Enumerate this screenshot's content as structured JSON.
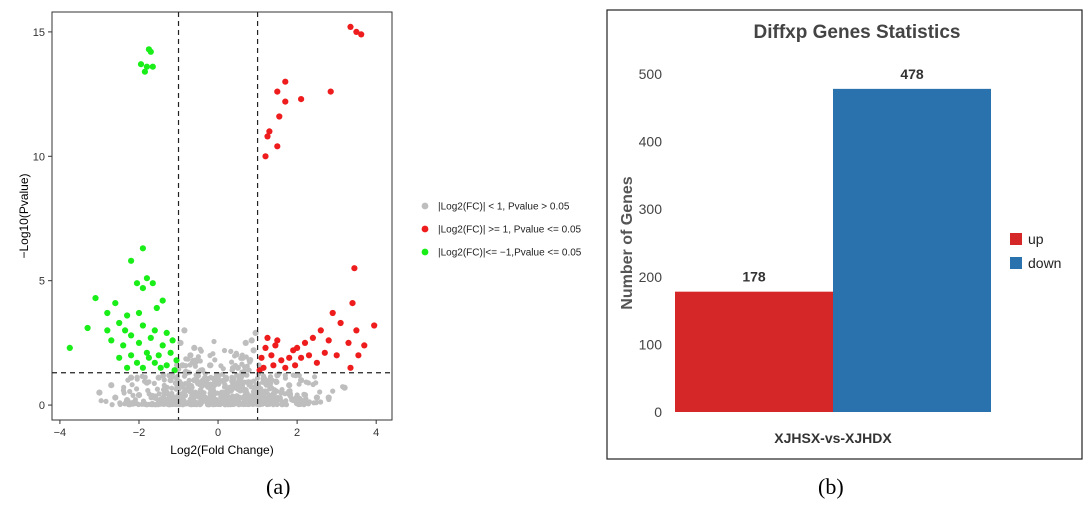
{
  "captions": {
    "a": "(a)",
    "b": "(b)"
  },
  "chart_data": [
    {
      "type": "scatter",
      "title": "",
      "xlabel": "Log2(Fold Change)",
      "ylabel": "−Log10(Pvalue)",
      "xlim": [
        -4.2,
        4.4
      ],
      "ylim": [
        -0.6,
        15.8
      ],
      "xticks": [
        -4,
        -2,
        0,
        2,
        4
      ],
      "yticks": [
        0,
        5,
        10,
        15
      ],
      "thresholds": {
        "x": [
          -1,
          1
        ],
        "y": 1.3
      },
      "grid": false,
      "legend_position": "right",
      "series": [
        {
          "name": "|Log2(FC)| < 1, Pvalue > 0.05",
          "color": "#bebebe",
          "points": [
            [
              -1.6,
              0.3
            ],
            [
              -1.3,
              0.5
            ],
            [
              -1.0,
              0.2
            ],
            [
              -0.8,
              0.6
            ],
            [
              -0.5,
              0.4
            ],
            [
              -0.2,
              0.3
            ],
            [
              0.1,
              0.5
            ],
            [
              0.4,
              0.2
            ],
            [
              0.7,
              0.6
            ],
            [
              1.0,
              0.4
            ],
            [
              1.3,
              0.3
            ],
            [
              1.6,
              0.5
            ],
            [
              1.9,
              0.2
            ],
            [
              2.2,
              0.4
            ],
            [
              2.5,
              0.3
            ],
            [
              -2.0,
              0.4
            ],
            [
              -2.3,
              0.2
            ],
            [
              -2.6,
              0.3
            ],
            [
              -3.0,
              0.5
            ],
            [
              2.8,
              0.3
            ],
            [
              -0.6,
              1.0
            ],
            [
              -0.4,
              1.4
            ],
            [
              -0.3,
              0.9
            ],
            [
              0.2,
              1.1
            ],
            [
              0.5,
              1.5
            ],
            [
              0.6,
              1.2
            ],
            [
              -0.9,
              1.6
            ],
            [
              -0.7,
              2.0
            ],
            [
              0.8,
              1.8
            ],
            [
              0.9,
              2.2
            ],
            [
              -0.95,
              2.5
            ],
            [
              -0.85,
              3.0
            ],
            [
              0.85,
              2.6
            ],
            [
              0.95,
              2.9
            ],
            [
              -1.2,
              1.0
            ],
            [
              -1.5,
              1.1
            ],
            [
              1.2,
              1.0
            ],
            [
              1.5,
              1.2
            ],
            [
              -0.1,
              0.8
            ],
            [
              0.0,
              1.2
            ],
            [
              -1.8,
              0.9
            ],
            [
              1.8,
              0.8
            ],
            [
              2.1,
              1.0
            ],
            [
              -2.2,
              1.1
            ],
            [
              0.3,
              0.7
            ],
            [
              -0.2,
              1.6
            ],
            [
              0.7,
              2.5
            ],
            [
              -0.6,
              2.3
            ],
            [
              3.2,
              0.7
            ],
            [
              -2.7,
              0.8
            ]
          ]
        },
        {
          "name": "|Log2(FC)| >= 1, Pvalue <= 0.05",
          "color": "#ee1c1c",
          "points": [
            [
              3.35,
              15.2
            ],
            [
              3.5,
              15.0
            ],
            [
              3.62,
              14.9
            ],
            [
              1.7,
              13.0
            ],
            [
              1.5,
              12.6
            ],
            [
              1.7,
              12.2
            ],
            [
              2.1,
              12.3
            ],
            [
              2.85,
              12.6
            ],
            [
              1.55,
              11.6
            ],
            [
              1.3,
              11.0
            ],
            [
              1.25,
              10.8
            ],
            [
              1.5,
              10.4
            ],
            [
              1.2,
              10.0
            ],
            [
              3.45,
              5.5
            ],
            [
              3.4,
              4.1
            ],
            [
              2.9,
              3.7
            ],
            [
              3.1,
              3.3
            ],
            [
              3.95,
              3.2
            ],
            [
              2.6,
              3.0
            ],
            [
              2.4,
              2.7
            ],
            [
              3.5,
              3.0
            ],
            [
              2.2,
              2.5
            ],
            [
              3.3,
              2.5
            ],
            [
              3.7,
              2.4
            ],
            [
              2.0,
              2.3
            ],
            [
              2.7,
              2.1
            ],
            [
              3.0,
              2.0
            ],
            [
              3.55,
              2.0
            ],
            [
              1.5,
              2.6
            ],
            [
              1.2,
              2.3
            ],
            [
              1.1,
              1.9
            ],
            [
              1.35,
              2.0
            ],
            [
              1.6,
              1.8
            ],
            [
              1.8,
              1.9
            ],
            [
              1.9,
              2.2
            ],
            [
              1.4,
              1.6
            ],
            [
              1.15,
              1.5
            ],
            [
              2.5,
              1.7
            ],
            [
              2.1,
              1.9
            ],
            [
              1.7,
              1.5
            ],
            [
              1.25,
              2.7
            ],
            [
              1.05,
              1.4
            ],
            [
              1.95,
              1.6
            ],
            [
              2.3,
              2.0
            ],
            [
              1.45,
              2.4
            ],
            [
              3.35,
              1.5
            ],
            [
              2.8,
              2.6
            ]
          ]
        },
        {
          "name": "|Log2(FC)|<= −1,Pvalue <= 0.05",
          "color": "#19ee19",
          "points": [
            [
              -1.75,
              14.3
            ],
            [
              -1.7,
              14.2
            ],
            [
              -1.95,
              13.7
            ],
            [
              -1.8,
              13.6
            ],
            [
              -1.65,
              13.6
            ],
            [
              -1.85,
              13.4
            ],
            [
              -1.9,
              6.3
            ],
            [
              -2.2,
              5.8
            ],
            [
              -2.05,
              4.9
            ],
            [
              -1.8,
              5.1
            ],
            [
              -1.65,
              4.9
            ],
            [
              -1.9,
              4.7
            ],
            [
              -1.4,
              4.2
            ],
            [
              -1.55,
              3.9
            ],
            [
              -3.1,
              4.3
            ],
            [
              -2.6,
              4.1
            ],
            [
              -2.8,
              3.7
            ],
            [
              -2.3,
              3.6
            ],
            [
              -2.0,
              3.7
            ],
            [
              -2.5,
              3.3
            ],
            [
              -3.3,
              3.1
            ],
            [
              -3.75,
              2.3
            ],
            [
              -2.8,
              3.0
            ],
            [
              -2.35,
              3.0
            ],
            [
              -1.9,
              3.2
            ],
            [
              -2.2,
              2.8
            ],
            [
              -1.6,
              3.0
            ],
            [
              -1.3,
              2.9
            ],
            [
              -2.7,
              2.6
            ],
            [
              -2.4,
              2.4
            ],
            [
              -2.0,
              2.5
            ],
            [
              -1.7,
              2.7
            ],
            [
              -1.4,
              2.4
            ],
            [
              -1.15,
              2.6
            ],
            [
              -2.2,
              2.0
            ],
            [
              -1.8,
              2.1
            ],
            [
              -1.5,
              2.0
            ],
            [
              -1.2,
              2.1
            ],
            [
              -2.05,
              1.7
            ],
            [
              -1.6,
              1.7
            ],
            [
              -1.3,
              1.6
            ],
            [
              -2.3,
              1.5
            ],
            [
              -1.9,
              1.5
            ],
            [
              -1.45,
              1.5
            ],
            [
              -1.1,
              1.4
            ],
            [
              -2.5,
              1.9
            ],
            [
              -1.05,
              1.8
            ],
            [
              -1.75,
              1.9
            ]
          ]
        }
      ]
    },
    {
      "type": "bar",
      "title": "Diffxp Genes Statistics",
      "xlabel": "",
      "ylabel": "Number of Genes",
      "categories": [
        "XJHSX-vs-XJHDX"
      ],
      "ylim": [
        0,
        520
      ],
      "yticks": [
        0,
        100,
        200,
        300,
        400,
        500
      ],
      "grid": false,
      "legend_position": "right",
      "series": [
        {
          "name": "up",
          "color": "#d62728",
          "values": [
            178
          ]
        },
        {
          "name": "down",
          "color": "#2a72ad",
          "values": [
            478
          ]
        }
      ]
    }
  ]
}
